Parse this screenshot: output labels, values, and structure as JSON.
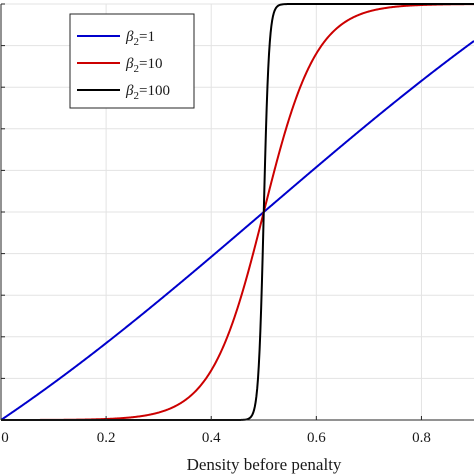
{
  "chart_data": {
    "type": "line",
    "title": "",
    "xlabel": "Density before penalty",
    "ylabel": "",
    "xlim": [
      0,
      0.9
    ],
    "ylim": [
      0,
      1.0
    ],
    "grid": true,
    "legend_position": "top-left",
    "x_ticks": [
      0,
      0.2,
      0.4,
      0.6,
      0.8
    ],
    "x_tick_labels": [
      "0",
      "0.2",
      "0.4",
      "0.6",
      "0.8"
    ],
    "y_ticks": [
      0,
      0.1,
      0.2,
      0.3,
      0.4,
      0.5,
      0.6,
      0.7,
      0.8,
      0.9,
      1.0
    ],
    "threshold": 0.5,
    "series": [
      {
        "name": "β2=1",
        "legend_symbol": "β",
        "legend_sub": "2",
        "legend_value": "=1",
        "beta": 1,
        "color": "#0000cc"
      },
      {
        "name": "β2=10",
        "legend_symbol": "β",
        "legend_sub": "2",
        "legend_value": "=10",
        "beta": 10,
        "color": "#cc0000"
      },
      {
        "name": "β2=100",
        "legend_symbol": "β",
        "legend_sub": "2",
        "legend_value": "=100",
        "beta": 100,
        "color": "#000000"
      }
    ]
  }
}
